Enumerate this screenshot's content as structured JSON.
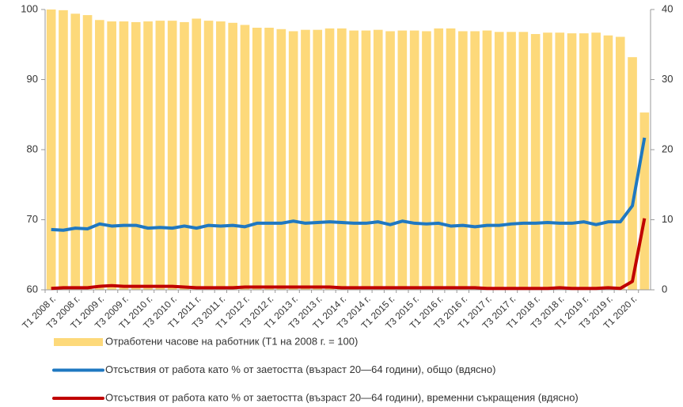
{
  "chart_data": {
    "type": "bar_line",
    "categories": [
      "Т1 2008 г.",
      null,
      "Т3 2008 г.",
      null,
      "Т1 2009 г.",
      null,
      "Т3 2009 г.",
      null,
      "Т1 2010 г.",
      null,
      "Т3 2010 г.",
      null,
      "Т1 2011 г.",
      null,
      "Т3 2011 г.",
      null,
      "Т1 2012 г.",
      null,
      "Т3 2012 г.",
      null,
      "Т1 2013 г.",
      null,
      "Т3 2013 г.",
      null,
      "Т1 2014 г.",
      null,
      "Т3 2014 г.",
      null,
      "Т1 2015 г.",
      null,
      "Т3 2015 г.",
      null,
      "Т1 2016 г.",
      null,
      "Т3 2016 г.",
      null,
      "Т1 2017 г.",
      null,
      "Т3 2017 г.",
      null,
      "Т1 2018 г.",
      null,
      "Т3 2018 г.",
      null,
      "Т1 2019 г.",
      null,
      "Т3 2019 г.",
      null,
      "Т1 2020 г.",
      null
    ],
    "series": [
      {
        "name": "Отработени часове на работник (Т1 на 2008 г. = 100)",
        "kind": "bar",
        "color": "#fdd97a",
        "axis": "y",
        "values": [
          100,
          99.9,
          99.4,
          99.2,
          98.5,
          98.3,
          98.3,
          98.2,
          98.3,
          98.4,
          98.4,
          98.2,
          98.7,
          98.4,
          98.3,
          98.1,
          97.8,
          97.4,
          97.4,
          97.2,
          96.9,
          97.1,
          97.1,
          97.3,
          97.3,
          97.0,
          97.0,
          97.1,
          96.9,
          97.0,
          97.0,
          96.9,
          97.3,
          97.3,
          96.9,
          96.9,
          97.0,
          96.8,
          96.8,
          96.8,
          96.5,
          96.7,
          96.7,
          96.6,
          96.6,
          96.7,
          96.3,
          96.1,
          93.2,
          85.3
        ]
      },
      {
        "name": "Отсъствия от работа като % от заетостта (възраст 20—64 години), общо (вдясно)",
        "kind": "line",
        "color": "#1f78c1",
        "axis": "y2",
        "values": [
          8.6,
          8.5,
          8.8,
          8.7,
          9.4,
          9.1,
          9.2,
          9.2,
          8.8,
          8.9,
          8.8,
          9.1,
          8.8,
          9.2,
          9.1,
          9.2,
          9.0,
          9.5,
          9.5,
          9.5,
          9.8,
          9.5,
          9.6,
          9.7,
          9.6,
          9.5,
          9.5,
          9.7,
          9.3,
          9.8,
          9.5,
          9.4,
          9.5,
          9.1,
          9.2,
          9.0,
          9.2,
          9.2,
          9.4,
          9.5,
          9.5,
          9.6,
          9.5,
          9.5,
          9.7,
          9.3,
          9.7,
          9.7,
          12.0,
          21.7
        ]
      },
      {
        "name": "Отсъствия от работа като % от заетостта (възраст 20—64 години), временни съкращения (вдясно)",
        "kind": "line",
        "color": "#c00000",
        "axis": "y2",
        "values": [
          0.2,
          0.3,
          0.3,
          0.3,
          0.5,
          0.6,
          0.5,
          0.5,
          0.5,
          0.5,
          0.5,
          0.4,
          0.3,
          0.3,
          0.3,
          0.3,
          0.4,
          0.4,
          0.4,
          0.4,
          0.4,
          0.4,
          0.4,
          0.4,
          0.3,
          0.3,
          0.3,
          0.3,
          0.3,
          0.3,
          0.3,
          0.3,
          0.3,
          0.3,
          0.3,
          0.3,
          0.2,
          0.2,
          0.2,
          0.2,
          0.2,
          0.2,
          0.3,
          0.2,
          0.2,
          0.2,
          0.3,
          0.2,
          1.2,
          10.2
        ]
      }
    ],
    "ylim": [
      60,
      100
    ],
    "yticks": [
      60,
      70,
      80,
      90,
      100
    ],
    "y2lim": [
      0,
      40
    ],
    "y2ticks": [
      0,
      10,
      20,
      30,
      40
    ]
  }
}
